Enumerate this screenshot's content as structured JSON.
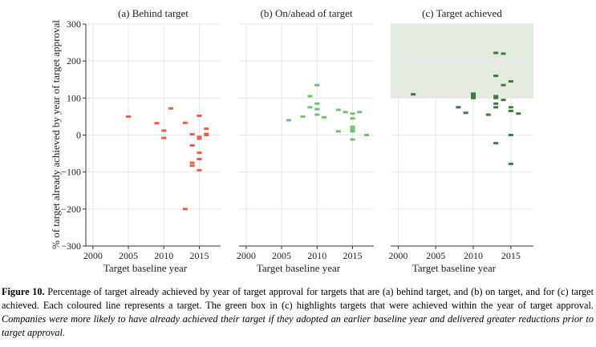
{
  "figure": {
    "ylabel": "% of target already achieved by year of target approval",
    "caption_label": "Figure 10.",
    "caption_text": "Percentage of target already achieved by year of target approval for targets that are (a) behind target, and (b) on target, and for (c) target achieved. Each coloured line represents a target. The green box in (c) highlights targets that were achieved within the year of target approval.",
    "caption_italic": "Companies were more likely to have already achieved their target if they adopted an earlier baseline year and delivered greater reductions prior to target approval."
  },
  "chart_data": [
    {
      "type": "scatter",
      "title": "(a) Behind target",
      "xlabel": "Target baseline year",
      "ylabel": "% of target already achieved by year of target approval",
      "xlim": [
        1999,
        2018
      ],
      "ylim": [
        -300,
        300
      ],
      "xticks": [
        2000,
        2005,
        2010,
        2015
      ],
      "yticks": [
        -300,
        -200,
        -100,
        0,
        100,
        200,
        300
      ],
      "grid": true,
      "color": "#ef5a44",
      "points": [
        [
          2005,
          50
        ],
        [
          2009,
          32
        ],
        [
          2010,
          12
        ],
        [
          2010,
          -8
        ],
        [
          2011,
          72
        ],
        [
          2013,
          33
        ],
        [
          2013,
          -200
        ],
        [
          2014,
          2
        ],
        [
          2014,
          -28
        ],
        [
          2014,
          -75
        ],
        [
          2014,
          -83
        ],
        [
          2015,
          52
        ],
        [
          2015,
          -5
        ],
        [
          2015,
          -10
        ],
        [
          2015,
          -48
        ],
        [
          2015,
          -65
        ],
        [
          2015,
          -95
        ],
        [
          2016,
          17
        ],
        [
          2016,
          3
        ],
        [
          2016,
          0
        ]
      ]
    },
    {
      "type": "scatter",
      "title": "(b) On/ahead of target",
      "xlabel": "Target baseline year",
      "xlim": [
        1999,
        2018
      ],
      "ylim": [
        -300,
        300
      ],
      "xticks": [
        2000,
        2005,
        2010,
        2015
      ],
      "grid": true,
      "color": "#72c06d",
      "points": [
        [
          2006,
          40
        ],
        [
          2008,
          50
        ],
        [
          2009,
          105
        ],
        [
          2009,
          75
        ],
        [
          2010,
          135
        ],
        [
          2010,
          85
        ],
        [
          2010,
          70
        ],
        [
          2010,
          55
        ],
        [
          2011,
          48
        ],
        [
          2013,
          68
        ],
        [
          2013,
          10
        ],
        [
          2014,
          62
        ],
        [
          2015,
          58
        ],
        [
          2015,
          45
        ],
        [
          2015,
          22
        ],
        [
          2015,
          15
        ],
        [
          2015,
          10
        ],
        [
          2015,
          -12
        ],
        [
          2016,
          62
        ],
        [
          2017,
          0
        ]
      ]
    },
    {
      "type": "scatter",
      "title": "(c) Target achieved",
      "xlabel": "Target baseline year",
      "xlim": [
        1999,
        2018
      ],
      "ylim": [
        -300,
        300
      ],
      "xticks": [
        2000,
        2005,
        2010,
        2015
      ],
      "grid": true,
      "color": "#3f7a3d",
      "highlight_box": {
        "x": [
          1999,
          2018
        ],
        "y": [
          100,
          300
        ],
        "color": "#e3eae0"
      },
      "points": [
        [
          2002,
          110
        ],
        [
          2008,
          75
        ],
        [
          2009,
          60
        ],
        [
          2010,
          112
        ],
        [
          2010,
          108
        ],
        [
          2010,
          104
        ],
        [
          2010,
          100
        ],
        [
          2012,
          55
        ],
        [
          2013,
          222
        ],
        [
          2013,
          160
        ],
        [
          2013,
          105
        ],
        [
          2013,
          100
        ],
        [
          2013,
          85
        ],
        [
          2013,
          75
        ],
        [
          2013,
          -22
        ],
        [
          2014,
          220
        ],
        [
          2014,
          135
        ],
        [
          2014,
          95
        ],
        [
          2015,
          145
        ],
        [
          2015,
          75
        ],
        [
          2015,
          65
        ],
        [
          2015,
          0
        ],
        [
          2015,
          -78
        ],
        [
          2016,
          58
        ]
      ]
    }
  ]
}
